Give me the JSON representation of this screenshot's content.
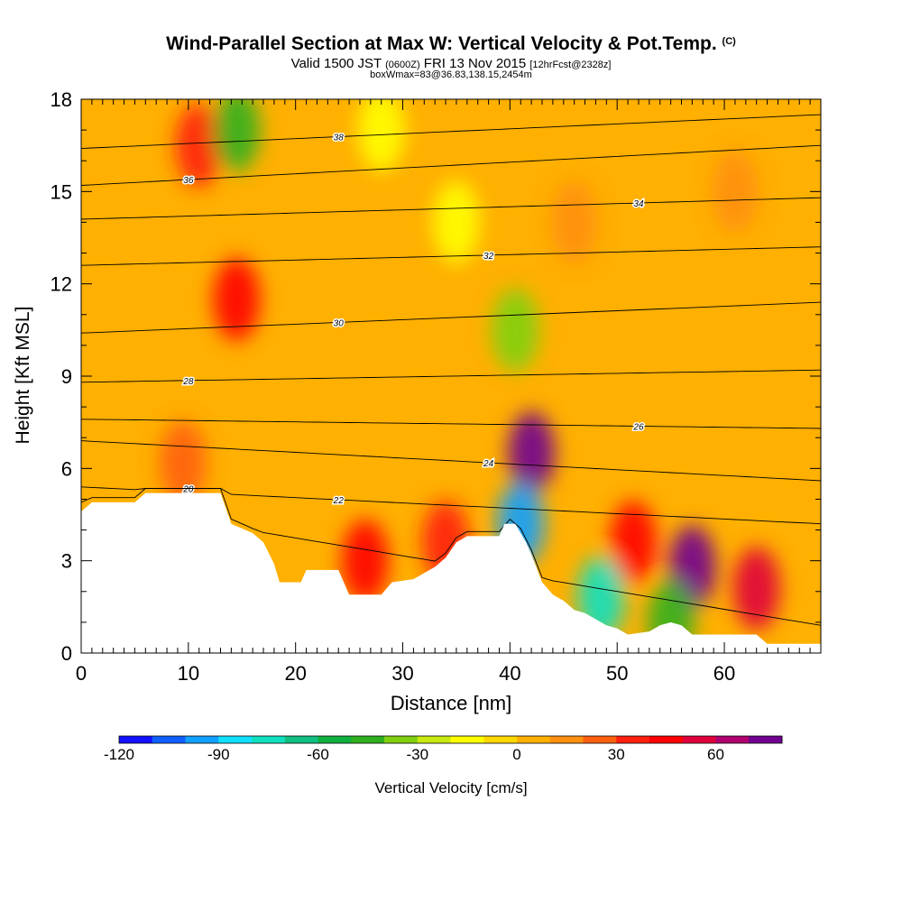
{
  "header": {
    "title": "Wind-Parallel Section at Max W: Vertical Velocity & Pot.Temp.",
    "title_mark": "(C)",
    "valid_a": "Valid 1500 JST",
    "valid_b": "(0600Z)",
    "valid_c": "FRI 13 Nov 2015",
    "valid_d": "[12hrFcst@2328z]",
    "box": "boxWmax=83@36.83,138.15,2454m"
  },
  "chart_data": {
    "type": "heatmap",
    "xlabel": "Distance [nm]",
    "ylabel": "Height [Kft MSL]",
    "xlim": [
      0,
      69
    ],
    "ylim": [
      0,
      18
    ],
    "x_ticks": [
      0,
      10,
      20,
      30,
      40,
      50,
      60
    ],
    "y_ticks": [
      0,
      3,
      6,
      9,
      12,
      15,
      18
    ],
    "colorbar": {
      "label": "Vertical Velocity [cm/s]",
      "ticks": [
        -120,
        -90,
        -60,
        -30,
        0,
        30,
        60
      ],
      "range": [
        -120,
        80
      ],
      "colors": [
        "#1010ff",
        "#1060ff",
        "#10a0ff",
        "#10e0ff",
        "#10e0c0",
        "#10c080",
        "#10b040",
        "#30b020",
        "#80d010",
        "#c8e810",
        "#ffff00",
        "#ffd800",
        "#ffb000",
        "#ff9010",
        "#ff6010",
        "#ff2010",
        "#ff0000",
        "#e0003c",
        "#b00070",
        "#700090"
      ]
    },
    "terrain": [
      [
        0,
        4.6
      ],
      [
        1,
        4.9
      ],
      [
        5,
        4.9
      ],
      [
        6,
        5.2
      ],
      [
        13,
        5.2
      ],
      [
        14,
        4.2
      ],
      [
        16,
        3.9
      ],
      [
        17,
        3.6
      ],
      [
        18,
        2.9
      ],
      [
        18.5,
        2.3
      ],
      [
        20.5,
        2.3
      ],
      [
        21,
        2.7
      ],
      [
        24,
        2.7
      ],
      [
        25,
        1.9
      ],
      [
        28,
        1.9
      ],
      [
        29,
        2.3
      ],
      [
        31,
        2.4
      ],
      [
        32,
        2.6
      ],
      [
        33,
        2.8
      ],
      [
        34,
        3.1
      ],
      [
        35,
        3.6
      ],
      [
        36,
        3.8
      ],
      [
        39,
        3.8
      ],
      [
        39.5,
        4.2
      ],
      [
        40.5,
        4.2
      ],
      [
        41.5,
        3.6
      ],
      [
        42,
        3.2
      ],
      [
        43,
        2.3
      ],
      [
        44,
        1.9
      ],
      [
        45,
        1.7
      ],
      [
        46,
        1.4
      ],
      [
        47,
        1.3
      ],
      [
        48,
        1.1
      ],
      [
        49,
        0.9
      ],
      [
        50,
        0.8
      ],
      [
        51,
        0.6
      ],
      [
        53,
        0.7
      ],
      [
        54,
        0.9
      ],
      [
        55,
        1.0
      ],
      [
        56,
        0.9
      ],
      [
        57,
        0.6
      ],
      [
        62,
        0.6
      ],
      [
        63,
        0.6
      ],
      [
        64,
        0.3
      ],
      [
        69,
        0.3
      ]
    ],
    "wind_cells": [
      {
        "x": 42,
        "y": 6.5,
        "w": 78
      },
      {
        "x": 57,
        "y": 2.8,
        "w": 70
      },
      {
        "x": 63,
        "y": 2.1,
        "w": 55
      },
      {
        "x": 51.5,
        "y": 3.6,
        "w": 45
      },
      {
        "x": 26.5,
        "y": 3.0,
        "w": 42
      },
      {
        "x": 14.5,
        "y": 11.5,
        "w": 42
      },
      {
        "x": 11,
        "y": 16.5,
        "w": 32
      },
      {
        "x": 34,
        "y": 3.6,
        "w": 30
      },
      {
        "x": 9.5,
        "y": 6.2,
        "w": 28
      },
      {
        "x": 48.5,
        "y": 1.8,
        "w": -80
      },
      {
        "x": 41,
        "y": 4.2,
        "w": -95
      },
      {
        "x": 14.5,
        "y": 17.0,
        "w": -45
      },
      {
        "x": 40.5,
        "y": 10.5,
        "w": -40
      },
      {
        "x": 28,
        "y": 17.0,
        "w": -20
      },
      {
        "x": 55,
        "y": 1.0,
        "w": -45
      },
      {
        "x": 35,
        "y": 14.0,
        "w": -15
      },
      {
        "x": 61,
        "y": 15.0,
        "w": 18
      },
      {
        "x": 46,
        "y": 14.0,
        "w": 16
      }
    ],
    "isentropes": [
      {
        "label": "20",
        "y_left": 4.9,
        "y_right": 0.9
      },
      {
        "label": "22",
        "y_left": 5.4,
        "y_right": 4.2
      },
      {
        "label": "24",
        "y_left": 6.9,
        "y_right": 5.6
      },
      {
        "label": "26",
        "y_left": 7.6,
        "y_right": 7.3
      },
      {
        "label": "28",
        "y_left": 8.8,
        "y_right": 9.2
      },
      {
        "label": "30",
        "y_left": 10.4,
        "y_right": 11.4
      },
      {
        "label": "32",
        "y_left": 12.6,
        "y_right": 13.2
      },
      {
        "label": "34",
        "y_left": 14.1,
        "y_right": 14.8
      },
      {
        "label": "36",
        "y_left": 15.2,
        "y_right": 16.5
      },
      {
        "label": "38",
        "y_left": 16.4,
        "y_right": 17.5
      }
    ]
  }
}
